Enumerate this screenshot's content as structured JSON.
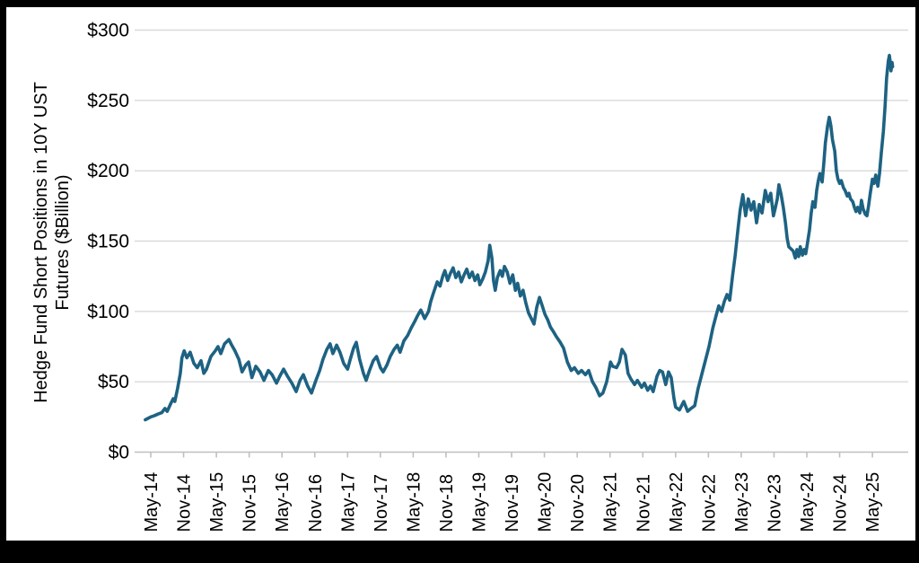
{
  "frame": {
    "background_color": "#000000",
    "card_color": "#ffffff",
    "grid_color": "#d9d9d9",
    "axis_color": "#bfbfbf",
    "text_color": "#000000"
  },
  "chart_data": {
    "type": "line",
    "title": "",
    "ylabel_line1": "Hedge Fund Short Positions in 10Y UST",
    "ylabel_line2": "Futures ($Billion)",
    "xlabel": "",
    "legend": "none",
    "grid": "horizontal",
    "ylim": [
      0,
      300
    ],
    "y_tick_values": [
      0,
      50,
      100,
      150,
      200,
      250,
      300
    ],
    "y_tick_labels": [
      "$0",
      "$50",
      "$100",
      "$150",
      "$200",
      "$250",
      "$300"
    ],
    "x_unit": "months since May-2014",
    "x_tick_months": [
      0,
      6,
      12,
      18,
      24,
      30,
      36,
      42,
      48,
      54,
      60,
      66,
      72,
      78,
      84,
      90,
      96,
      102,
      108,
      114,
      120,
      126,
      132
    ],
    "x_tick_labels": [
      "May-14",
      "Nov-14",
      "May-15",
      "Nov-15",
      "May-16",
      "Nov-16",
      "May-17",
      "Nov-17",
      "May-18",
      "Nov-18",
      "May-19",
      "Nov-19",
      "May-20",
      "Nov-20",
      "May-21",
      "Nov-21",
      "May-22",
      "Nov-22",
      "May-23",
      "Nov-23",
      "May-24",
      "Nov-24",
      "May-25"
    ],
    "series": [
      {
        "name": "Hedge Fund Short Positions in 10Y UST Futures ($Billion)",
        "color": "#1d6282",
        "points": [
          [
            -1.0,
            23
          ],
          [
            -0.5,
            24
          ],
          [
            0,
            25
          ],
          [
            0.7,
            26
          ],
          [
            1.3,
            27
          ],
          [
            2.0,
            28
          ],
          [
            2.6,
            31
          ],
          [
            3.0,
            29
          ],
          [
            3.6,
            34
          ],
          [
            4.1,
            38
          ],
          [
            4.4,
            36
          ],
          [
            4.9,
            45
          ],
          [
            5.4,
            56
          ],
          [
            5.7,
            67
          ],
          [
            6.1,
            72
          ],
          [
            6.6,
            67
          ],
          [
            7.2,
            71
          ],
          [
            7.9,
            63
          ],
          [
            8.5,
            60
          ],
          [
            9.2,
            65
          ],
          [
            9.7,
            56
          ],
          [
            10.2,
            59
          ],
          [
            11.0,
            68
          ],
          [
            11.8,
            72
          ],
          [
            12.3,
            75
          ],
          [
            12.8,
            70
          ],
          [
            13.5,
            77
          ],
          [
            14.3,
            80
          ],
          [
            14.8,
            76
          ],
          [
            15.4,
            72
          ],
          [
            16.1,
            66
          ],
          [
            16.7,
            57
          ],
          [
            17.4,
            62
          ],
          [
            17.9,
            64
          ],
          [
            18.5,
            53
          ],
          [
            19.2,
            61
          ],
          [
            20.0,
            57
          ],
          [
            20.7,
            51
          ],
          [
            21.5,
            58
          ],
          [
            22.2,
            55
          ],
          [
            23.0,
            49
          ],
          [
            23.6,
            54
          ],
          [
            24.3,
            59
          ],
          [
            25.0,
            54
          ],
          [
            25.8,
            49
          ],
          [
            26.6,
            43
          ],
          [
            27.3,
            51
          ],
          [
            27.9,
            55
          ],
          [
            28.7,
            47
          ],
          [
            29.4,
            42
          ],
          [
            30.2,
            51
          ],
          [
            30.9,
            58
          ],
          [
            31.5,
            66
          ],
          [
            32.2,
            73
          ],
          [
            32.8,
            77
          ],
          [
            33.3,
            70
          ],
          [
            34.0,
            76
          ],
          [
            34.6,
            71
          ],
          [
            35.3,
            63
          ],
          [
            36.0,
            59
          ],
          [
            36.5,
            66
          ],
          [
            37.1,
            74
          ],
          [
            37.6,
            78
          ],
          [
            38.2,
            66
          ],
          [
            38.9,
            56
          ],
          [
            39.4,
            51
          ],
          [
            40.0,
            58
          ],
          [
            40.7,
            65
          ],
          [
            41.3,
            68
          ],
          [
            42.0,
            60
          ],
          [
            42.5,
            57
          ],
          [
            43.2,
            62
          ],
          [
            43.8,
            68
          ],
          [
            44.5,
            73
          ],
          [
            45.1,
            76
          ],
          [
            45.6,
            71
          ],
          [
            46.3,
            79
          ],
          [
            47.0,
            83
          ],
          [
            47.6,
            88
          ],
          [
            48.3,
            93
          ],
          [
            48.8,
            97
          ],
          [
            49.4,
            101
          ],
          [
            50.1,
            95
          ],
          [
            50.8,
            100
          ],
          [
            51.2,
            107
          ],
          [
            51.7,
            113
          ],
          [
            52.4,
            121
          ],
          [
            52.9,
            118
          ],
          [
            53.4,
            125
          ],
          [
            53.8,
            129
          ],
          [
            54.3,
            122
          ],
          [
            54.8,
            127
          ],
          [
            55.3,
            131
          ],
          [
            55.8,
            124
          ],
          [
            56.3,
            128
          ],
          [
            56.8,
            121
          ],
          [
            57.3,
            126
          ],
          [
            57.8,
            130
          ],
          [
            58.3,
            124
          ],
          [
            58.8,
            128
          ],
          [
            59.3,
            122
          ],
          [
            59.8,
            126
          ],
          [
            60.2,
            119
          ],
          [
            60.7,
            123
          ],
          [
            61.2,
            128
          ],
          [
            61.7,
            136
          ],
          [
            62.0,
            147
          ],
          [
            62.4,
            138
          ],
          [
            62.7,
            122
          ],
          [
            63.0,
            115
          ],
          [
            63.4,
            124
          ],
          [
            63.9,
            129
          ],
          [
            64.3,
            125
          ],
          [
            64.7,
            132
          ],
          [
            65.2,
            128
          ],
          [
            65.7,
            120
          ],
          [
            66.2,
            126
          ],
          [
            66.7,
            115
          ],
          [
            67.1,
            120
          ],
          [
            67.6,
            111
          ],
          [
            68.1,
            115
          ],
          [
            68.6,
            106
          ],
          [
            69.1,
            99
          ],
          [
            69.6,
            95
          ],
          [
            70.1,
            91
          ],
          [
            70.6,
            103
          ],
          [
            71.1,
            110
          ],
          [
            71.6,
            104
          ],
          [
            72.1,
            98
          ],
          [
            72.6,
            94
          ],
          [
            73.1,
            89
          ],
          [
            73.6,
            86
          ],
          [
            74.2,
            82
          ],
          [
            74.9,
            78
          ],
          [
            75.5,
            74
          ],
          [
            76.2,
            64
          ],
          [
            76.9,
            58
          ],
          [
            77.5,
            60
          ],
          [
            78.2,
            56
          ],
          [
            78.8,
            58
          ],
          [
            79.5,
            55
          ],
          [
            80.1,
            58
          ],
          [
            80.8,
            50
          ],
          [
            81.4,
            46
          ],
          [
            82.1,
            40
          ],
          [
            82.7,
            42
          ],
          [
            83.4,
            50
          ],
          [
            84.1,
            64
          ],
          [
            84.5,
            61
          ],
          [
            85.2,
            60
          ],
          [
            85.7,
            64
          ],
          [
            86.2,
            73
          ],
          [
            86.8,
            69
          ],
          [
            87.3,
            56
          ],
          [
            87.8,
            52
          ],
          [
            88.5,
            48
          ],
          [
            89.0,
            51
          ],
          [
            89.8,
            46
          ],
          [
            90.3,
            49
          ],
          [
            90.9,
            44
          ],
          [
            91.4,
            47
          ],
          [
            91.9,
            43
          ],
          [
            92.6,
            54
          ],
          [
            93.1,
            58
          ],
          [
            93.6,
            57
          ],
          [
            94.2,
            48
          ],
          [
            94.7,
            57
          ],
          [
            95.2,
            53
          ],
          [
            95.7,
            38
          ],
          [
            96.0,
            32
          ],
          [
            96.7,
            30
          ],
          [
            97.5,
            36
          ],
          [
            98.2,
            29
          ],
          [
            98.8,
            31
          ],
          [
            99.5,
            33
          ],
          [
            100.1,
            45
          ],
          [
            101.1,
            60
          ],
          [
            102.1,
            75
          ],
          [
            102.8,
            88
          ],
          [
            103.4,
            97
          ],
          [
            103.9,
            104
          ],
          [
            104.4,
            100
          ],
          [
            104.9,
            107
          ],
          [
            105.4,
            112
          ],
          [
            105.9,
            108
          ],
          [
            106.4,
            125
          ],
          [
            106.9,
            140
          ],
          [
            107.4,
            158
          ],
          [
            107.8,
            172
          ],
          [
            108.3,
            183
          ],
          [
            108.8,
            168
          ],
          [
            109.3,
            180
          ],
          [
            109.8,
            172
          ],
          [
            110.3,
            178
          ],
          [
            110.8,
            163
          ],
          [
            111.3,
            176
          ],
          [
            111.8,
            170
          ],
          [
            112.4,
            186
          ],
          [
            112.9,
            178
          ],
          [
            113.4,
            184
          ],
          [
            113.9,
            168
          ],
          [
            114.2,
            173
          ],
          [
            114.6,
            180
          ],
          [
            114.9,
            190
          ],
          [
            115.3,
            183
          ],
          [
            115.7,
            174
          ],
          [
            116.1,
            163
          ],
          [
            116.4,
            152
          ],
          [
            116.7,
            146
          ],
          [
            117.5,
            143
          ],
          [
            117.9,
            138
          ],
          [
            118.2,
            144
          ],
          [
            118.5,
            139
          ],
          [
            118.8,
            146
          ],
          [
            119.2,
            140
          ],
          [
            119.5,
            144
          ],
          [
            119.8,
            141
          ],
          [
            120.1,
            148
          ],
          [
            120.5,
            158
          ],
          [
            120.8,
            170
          ],
          [
            121.1,
            178
          ],
          [
            121.5,
            174
          ],
          [
            121.8,
            186
          ],
          [
            122.1,
            193
          ],
          [
            122.4,
            198
          ],
          [
            122.8,
            192
          ],
          [
            123.1,
            205
          ],
          [
            123.4,
            220
          ],
          [
            123.8,
            232
          ],
          [
            124.1,
            238
          ],
          [
            124.4,
            232
          ],
          [
            124.7,
            222
          ],
          [
            125.1,
            214
          ],
          [
            125.4,
            200
          ],
          [
            125.7,
            194
          ],
          [
            126.0,
            191
          ],
          [
            126.3,
            193
          ],
          [
            126.7,
            188
          ],
          [
            127.0,
            186
          ],
          [
            127.4,
            182
          ],
          [
            127.7,
            184
          ],
          [
            128.0,
            180
          ],
          [
            128.4,
            178
          ],
          [
            128.7,
            174
          ],
          [
            129.0,
            171
          ],
          [
            129.3,
            174
          ],
          [
            129.7,
            170
          ],
          [
            130.0,
            179
          ],
          [
            130.3,
            173
          ],
          [
            130.7,
            169
          ],
          [
            131.0,
            168
          ],
          [
            131.3,
            175
          ],
          [
            131.6,
            184
          ],
          [
            132.0,
            194
          ],
          [
            132.3,
            191
          ],
          [
            132.6,
            197
          ],
          [
            133.0,
            189
          ],
          [
            133.3,
            198
          ],
          [
            133.6,
            212
          ],
          [
            134.0,
            228
          ],
          [
            134.3,
            245
          ],
          [
            134.6,
            266
          ],
          [
            134.9,
            278
          ],
          [
            135.1,
            282
          ],
          [
            135.3,
            276
          ],
          [
            135.4,
            271
          ],
          [
            135.6,
            277
          ],
          [
            135.7,
            274
          ]
        ]
      }
    ]
  }
}
